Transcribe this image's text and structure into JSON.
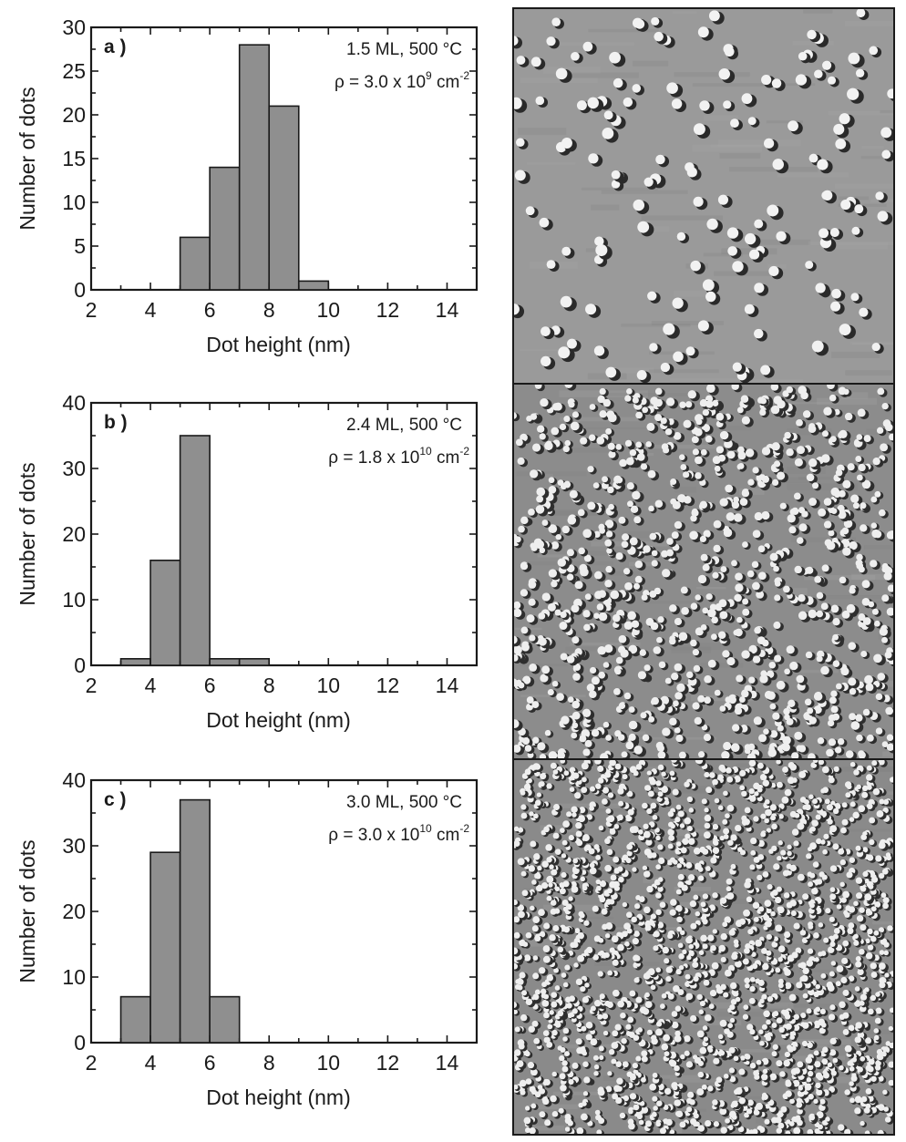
{
  "chart_data": [
    {
      "type": "bar",
      "panel_label": "a )",
      "annotation_line1": "1.5 ML, 500 °C",
      "annotation_line2_prefix": "ρ = 3.0 x 10",
      "annotation_line2_exp": "9",
      "annotation_line2_unit": " cm",
      "annotation_line2_unit_exp": "-2",
      "xlabel": "Dot height (nm)",
      "ylabel": "Number of dots",
      "xlim": [
        2,
        15
      ],
      "ylim": [
        0,
        30
      ],
      "xticks": [
        2,
        4,
        6,
        8,
        10,
        12,
        14
      ],
      "yticks": [
        0,
        5,
        10,
        15,
        20,
        25,
        30
      ],
      "bin_width": 1,
      "bins": [
        {
          "x": 5,
          "value": 6
        },
        {
          "x": 6,
          "value": 14
        },
        {
          "x": 7,
          "value": 28
        },
        {
          "x": 8,
          "value": 21
        },
        {
          "x": 9,
          "value": 1
        }
      ]
    },
    {
      "type": "bar",
      "panel_label": "b )",
      "annotation_line1": "2.4 ML, 500 °C",
      "annotation_line2_prefix": "ρ = 1.8 x 10",
      "annotation_line2_exp": "10",
      "annotation_line2_unit": " cm",
      "annotation_line2_unit_exp": "-2",
      "xlabel": "Dot height (nm)",
      "ylabel": "Number of dots",
      "xlim": [
        2,
        15
      ],
      "ylim": [
        0,
        40
      ],
      "xticks": [
        2,
        4,
        6,
        8,
        10,
        12,
        14
      ],
      "yticks": [
        0,
        10,
        20,
        30,
        40
      ],
      "bin_width": 1,
      "bins": [
        {
          "x": 3,
          "value": 1
        },
        {
          "x": 4,
          "value": 16
        },
        {
          "x": 5,
          "value": 35
        },
        {
          "x": 6,
          "value": 1
        },
        {
          "x": 7,
          "value": 1
        }
      ]
    },
    {
      "type": "bar",
      "panel_label": "c )",
      "annotation_line1": "3.0 ML, 500 °C",
      "annotation_line2_prefix": "ρ = 3.0 x 10",
      "annotation_line2_exp": "10",
      "annotation_line2_unit": " cm",
      "annotation_line2_unit_exp": "-2",
      "xlabel": "Dot height (nm)",
      "ylabel": "Number of dots",
      "xlim": [
        2,
        15
      ],
      "ylim": [
        0,
        40
      ],
      "xticks": [
        2,
        4,
        6,
        8,
        10,
        12,
        14
      ],
      "yticks": [
        0,
        10,
        20,
        30,
        40
      ],
      "bin_width": 1,
      "bins": [
        {
          "x": 3,
          "value": 7
        },
        {
          "x": 4,
          "value": 29
        },
        {
          "x": 5,
          "value": 37
        },
        {
          "x": 6,
          "value": 7
        }
      ]
    }
  ],
  "afm_images": [
    {
      "name": "afm-image-a",
      "dot_density": "low",
      "colors": {
        "background": "#9a9a9a",
        "dot_light": "#f2f2f2",
        "dot_dark": "#2a2a2a"
      }
    },
    {
      "name": "afm-image-b",
      "dot_density": "medium",
      "colors": {
        "background": "#8c8c8c",
        "dot_light": "#eeeeee",
        "dot_dark": "#2e2e2e"
      }
    },
    {
      "name": "afm-image-c",
      "dot_density": "high",
      "colors": {
        "background": "#8a8a8a",
        "dot_light": "#eeeeee",
        "dot_dark": "#2e2e2e"
      }
    }
  ]
}
